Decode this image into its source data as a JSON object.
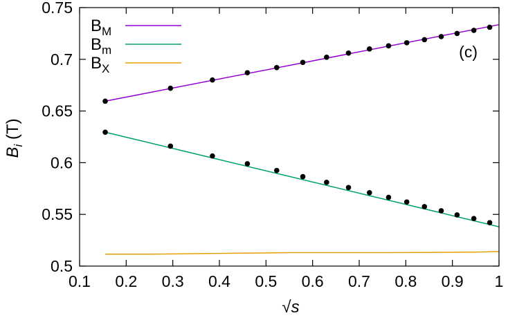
{
  "chart_data": {
    "type": "line",
    "panel_label": "(c)",
    "xlabel": {
      "radical": "√",
      "var": "s"
    },
    "ylabel": {
      "var": "B",
      "sub": "i",
      "unit": " (T)"
    },
    "xlim": [
      0.1,
      1.0
    ],
    "ylim": [
      0.5,
      0.75
    ],
    "xticks": [
      "0.1",
      "0.2",
      "0.3",
      "0.4",
      "0.5",
      "0.6",
      "0.7",
      "0.8",
      "0.9",
      "1"
    ],
    "yticks": [
      "0.5",
      "0.55",
      "0.6",
      "0.65",
      "0.7",
      "0.75"
    ],
    "legend_position": "top-left",
    "series": [
      {
        "name_main": "B",
        "name_sub": "M",
        "color": "#9400d3",
        "line": {
          "x": [
            0.155,
            1.0
          ],
          "y": [
            0.6595,
            0.7335
          ]
        },
        "points": {
          "x": [
            0.155,
            0.295,
            0.385,
            0.46,
            0.523,
            0.579,
            0.63,
            0.677,
            0.722,
            0.763,
            0.802,
            0.84,
            0.876,
            0.91,
            0.946,
            0.98
          ],
          "y": [
            0.6595,
            0.672,
            0.68,
            0.687,
            0.692,
            0.697,
            0.702,
            0.706,
            0.71,
            0.713,
            0.716,
            0.719,
            0.722,
            0.725,
            0.728,
            0.731
          ]
        }
      },
      {
        "name_main": "B",
        "name_sub": "m",
        "color": "#009e73",
        "line": {
          "x": [
            0.155,
            1.0
          ],
          "y": [
            0.6295,
            0.538
          ]
        },
        "points": {
          "x": [
            0.155,
            0.295,
            0.385,
            0.46,
            0.523,
            0.579,
            0.63,
            0.677,
            0.722,
            0.763,
            0.802,
            0.84,
            0.876,
            0.91,
            0.946,
            0.98
          ],
          "y": [
            0.6295,
            0.616,
            0.6065,
            0.599,
            0.5925,
            0.5865,
            0.581,
            0.576,
            0.571,
            0.5665,
            0.562,
            0.5575,
            0.5535,
            0.5495,
            0.546,
            0.542
          ]
        }
      },
      {
        "name_main": "B",
        "name_sub": "X",
        "color": "#e69f00",
        "line": {
          "x": [
            0.155,
            0.25,
            0.35,
            0.45,
            0.55,
            0.65,
            0.75,
            0.85,
            0.95,
            1.0
          ],
          "y": [
            0.5115,
            0.5115,
            0.512,
            0.5125,
            0.513,
            0.513,
            0.513,
            0.5132,
            0.5135,
            0.514
          ]
        },
        "points": {
          "x": [],
          "y": []
        }
      }
    ]
  }
}
